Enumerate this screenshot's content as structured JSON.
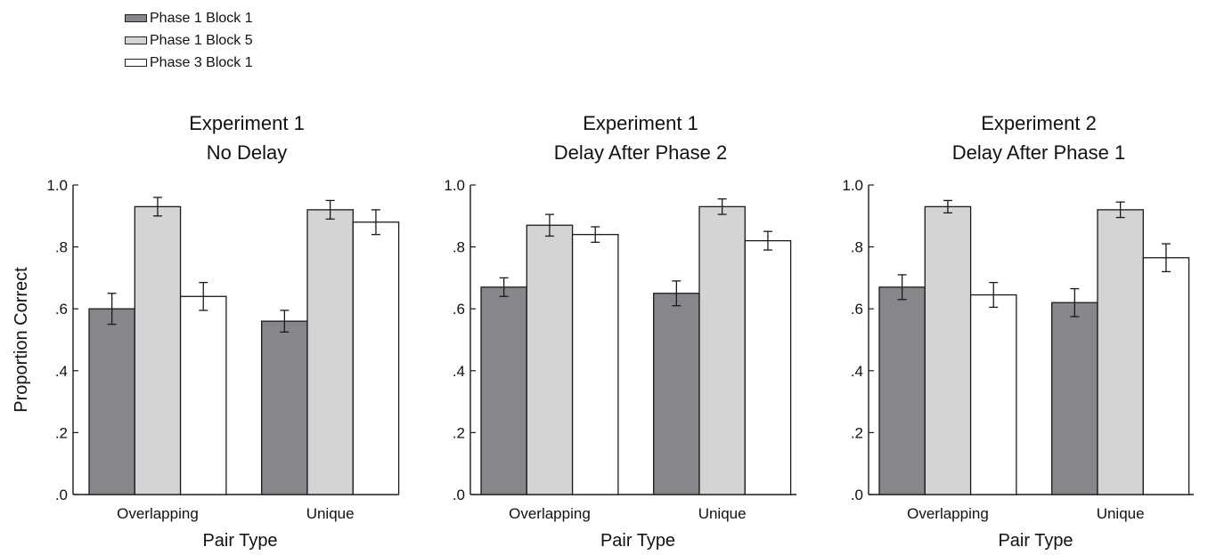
{
  "colors": {
    "phase1_block1": "#86878b",
    "phase1_block5": "#d3d4d6",
    "phase3_block1": "#ffffff",
    "stroke": "#1a1a1a"
  },
  "legend": [
    {
      "label": "Phase 1 Block 1",
      "color": "#86878b"
    },
    {
      "label": "Phase 1 Block 5",
      "color": "#d3d4d6"
    },
    {
      "label": "Phase 3 Block 1",
      "color": "#ffffff"
    }
  ],
  "y_axis_label": "Proportion Correct",
  "chart_data": [
    {
      "type": "bar",
      "title": "Experiment 1 No Delay",
      "title_lines": [
        "Experiment 1",
        "No Delay"
      ],
      "xlabel": "Pair Type",
      "ylabel": "Proportion Correct",
      "categories": [
        "Overlapping",
        "Unique"
      ],
      "ylim": [
        0,
        1.0
      ],
      "yticks": [
        ".0",
        ".2",
        ".4",
        ".6",
        ".8",
        "1.0"
      ],
      "series": [
        {
          "name": "Phase 1 Block 1",
          "values": [
            0.6,
            0.56
          ],
          "errors": [
            0.05,
            0.035
          ]
        },
        {
          "name": "Phase 1 Block 5",
          "values": [
            0.93,
            0.92
          ],
          "errors": [
            0.03,
            0.03
          ]
        },
        {
          "name": "Phase 3 Block 1",
          "values": [
            0.64,
            0.88
          ],
          "errors": [
            0.045,
            0.04
          ]
        }
      ]
    },
    {
      "type": "bar",
      "title": "Experiment 1 Delay After Phase 2",
      "title_lines": [
        "Experiment 1",
        "Delay After Phase 2"
      ],
      "xlabel": "Pair Type",
      "ylabel": "",
      "categories": [
        "Overlapping",
        "Unique"
      ],
      "ylim": [
        0,
        1.0
      ],
      "yticks": [
        ".0",
        ".2",
        ".4",
        ".6",
        ".8",
        "1.0"
      ],
      "series": [
        {
          "name": "Phase 1 Block 1",
          "values": [
            0.67,
            0.65
          ],
          "errors": [
            0.03,
            0.04
          ]
        },
        {
          "name": "Phase 1 Block 5",
          "values": [
            0.87,
            0.93
          ],
          "errors": [
            0.035,
            0.025
          ]
        },
        {
          "name": "Phase 3 Block 1",
          "values": [
            0.84,
            0.82
          ],
          "errors": [
            0.025,
            0.03
          ]
        }
      ]
    },
    {
      "type": "bar",
      "title": "Experiment 2 Delay After Phase 1",
      "title_lines": [
        "Experiment 2",
        "Delay After Phase 1"
      ],
      "xlabel": "Pair Type",
      "ylabel": "",
      "categories": [
        "Overlapping",
        "Unique"
      ],
      "ylim": [
        0,
        1.0
      ],
      "yticks": [
        ".0",
        ".2",
        ".4",
        ".6",
        ".8",
        "1.0"
      ],
      "series": [
        {
          "name": "Phase 1 Block 1",
          "values": [
            0.67,
            0.62
          ],
          "errors": [
            0.04,
            0.045
          ]
        },
        {
          "name": "Phase 1 Block 5",
          "values": [
            0.93,
            0.92
          ],
          "errors": [
            0.02,
            0.025
          ]
        },
        {
          "name": "Phase 3 Block 1",
          "values": [
            0.645,
            0.765
          ],
          "errors": [
            0.04,
            0.045
          ]
        }
      ]
    }
  ]
}
